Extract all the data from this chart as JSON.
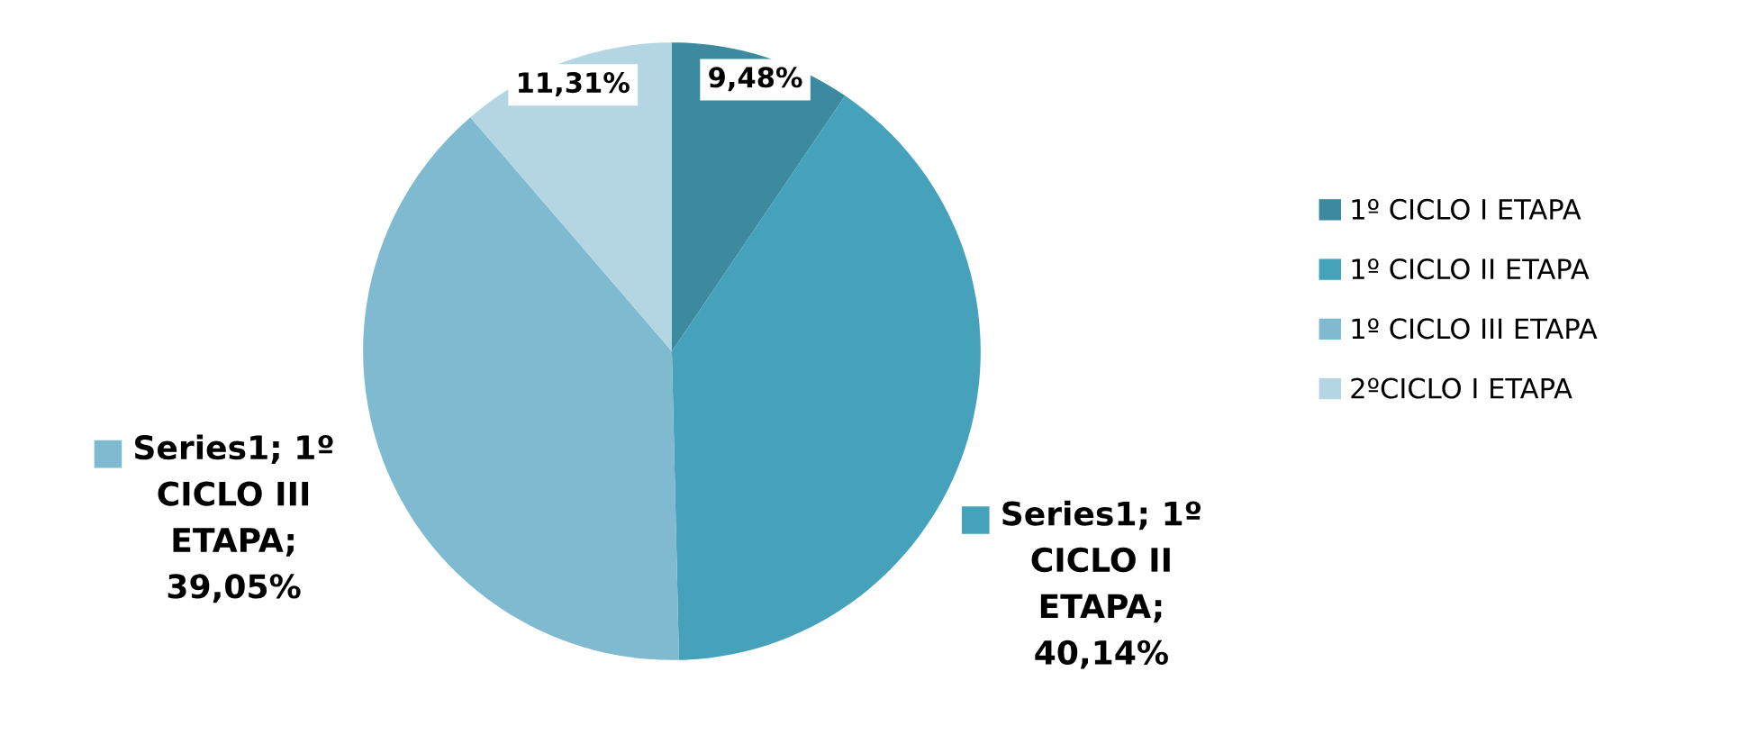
{
  "chart_data": {
    "type": "pie",
    "categories": [
      "1º CICLO I ETAPA",
      "1º CICLO II ETAPA",
      "1º CICLO III ETAPA",
      "2ºCICLO I ETAPA"
    ],
    "values": [
      9.48,
      40.14,
      39.05,
      11.31
    ],
    "colors": [
      "#3b8aa0",
      "#46a1bb",
      "#7fbad0",
      "#b4d6e2"
    ],
    "value_labels": [
      "9,48%",
      "Series1; 1º\nCICLO II\nETAPA;\n40,14%",
      "Series1; 1º\nCICLO III\nETAPA;\n39,05%",
      "11,31%"
    ],
    "legend": "right"
  }
}
